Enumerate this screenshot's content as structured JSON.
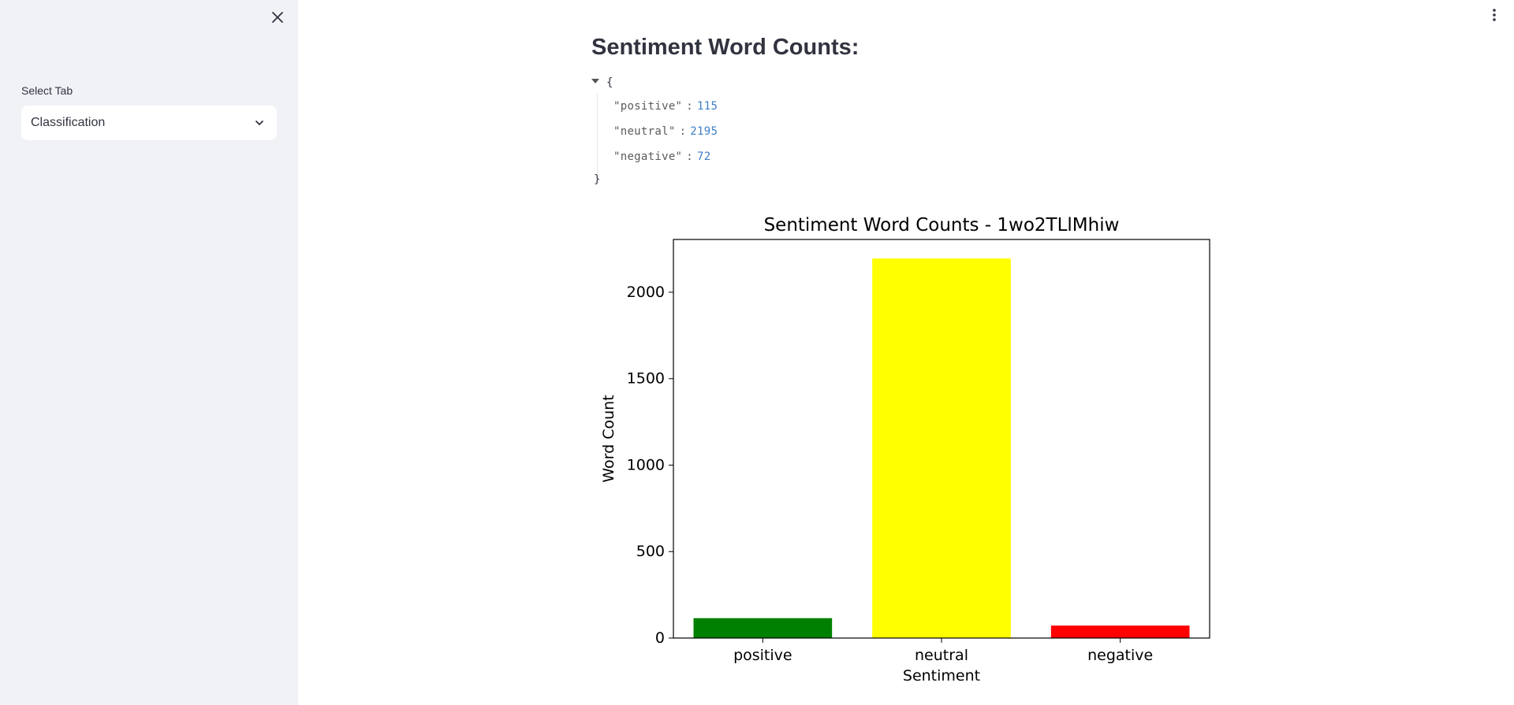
{
  "sidebar": {
    "select_label": "Select Tab",
    "select_value": "Classification",
    "close_icon": "close-icon",
    "chevron_icon": "chevron-down-icon"
  },
  "header": {
    "menu_icon": "vertical-dots-icon"
  },
  "main": {
    "title": "Sentiment Word Counts:",
    "json_open": "{",
    "json_close": "}",
    "json_entries": [
      {
        "key": "\"positive\"",
        "value": "115"
      },
      {
        "key": "\"neutral\"",
        "value": "2195"
      },
      {
        "key": "\"negative\"",
        "value": "72"
      }
    ]
  },
  "chart_data": {
    "type": "bar",
    "title": "Sentiment Word Counts - 1wo2TLlMhiw",
    "xlabel": "Sentiment",
    "ylabel": "Word Count",
    "categories": [
      "positive",
      "neutral",
      "negative"
    ],
    "values": [
      115,
      2195,
      72
    ],
    "colors": [
      "#008000",
      "#ffff00",
      "#ff0000"
    ],
    "ylim": [
      0,
      2305
    ],
    "yticks": [
      0,
      500,
      1000,
      1500,
      2000
    ],
    "grid": false
  }
}
